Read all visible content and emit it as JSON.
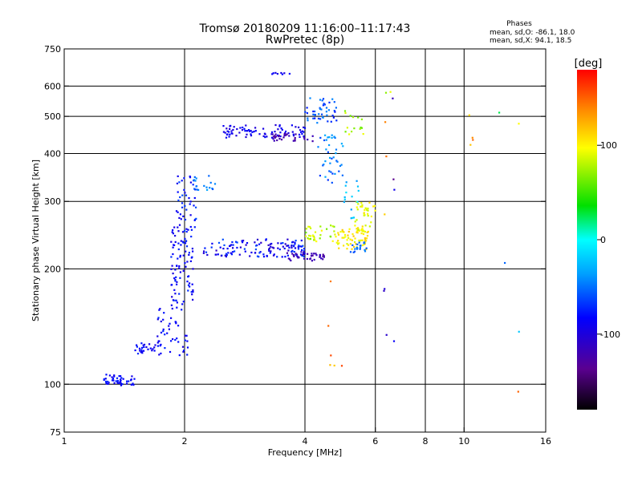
{
  "chart_data": {
    "type": "scatter",
    "title": "Tromsø 20180209 11:16:00–11:17:43",
    "subtitle": "RwPretec (8p)",
    "xlabel": "Frequency [MHz]",
    "ylabel": "Stationary phase Virtual Height [km]",
    "x_scale": "log",
    "y_scale": "log",
    "xlim": [
      1,
      16
    ],
    "ylim": [
      75,
      750
    ],
    "x_ticks": [
      {
        "value": 1,
        "label": "1"
      },
      {
        "value": 2,
        "label": "2"
      },
      {
        "value": 4,
        "label": "4"
      },
      {
        "value": 6,
        "label": "6"
      },
      {
        "value": 8,
        "label": "8"
      },
      {
        "value": 10,
        "label": "10"
      },
      {
        "value": 16,
        "label": "16"
      }
    ],
    "y_ticks": [
      {
        "value": 75,
        "label": "75"
      },
      {
        "value": 100,
        "label": "100"
      },
      {
        "value": 200,
        "label": "200"
      },
      {
        "value": 300,
        "label": "300"
      },
      {
        "value": 400,
        "label": "400"
      },
      {
        "value": 500,
        "label": "500"
      },
      {
        "value": 600,
        "label": "600"
      },
      {
        "value": 750,
        "label": "750"
      }
    ],
    "grid": true,
    "x_gridlines": [
      2,
      4,
      6,
      8,
      10
    ],
    "y_gridlines": [
      100,
      200,
      300,
      400,
      500,
      600
    ],
    "phase_stats": {
      "heading": "Phases",
      "line_o": "mean, sd,O: -86.1, 18.0",
      "line_x": "mean, sd,X:  94.1, 18.5"
    },
    "colorbar": {
      "label": "[deg]",
      "range": [
        -180,
        180
      ],
      "ticks": [
        {
          "value": 100,
          "label": "100"
        },
        {
          "value": 0,
          "label": "0"
        },
        {
          "value": -100,
          "label": "-100"
        }
      ]
    },
    "seed": 20180209,
    "point_clusters": [
      {
        "x": [
          1.25,
          1.5
        ],
        "y": [
          99,
          106
        ],
        "phase": [
          -95,
          -70
        ],
        "n": 45
      },
      {
        "x": [
          1.5,
          1.75
        ],
        "y": [
          120,
          128
        ],
        "phase": [
          -100,
          -70
        ],
        "n": 30
      },
      {
        "x": [
          1.7,
          2.05
        ],
        "y": [
          118,
          160
        ],
        "phase": [
          -100,
          -70
        ],
        "n": 45
      },
      {
        "x": [
          1.85,
          2.1
        ],
        "y": [
          160,
          260
        ],
        "phase": [
          -100,
          -70
        ],
        "n": 90
      },
      {
        "x": [
          1.9,
          2.15
        ],
        "y": [
          250,
          350
        ],
        "phase": [
          -95,
          -60
        ],
        "n": 45
      },
      {
        "x": [
          2.1,
          2.4
        ],
        "y": [
          320,
          350
        ],
        "phase": [
          -60,
          -30
        ],
        "n": 18
      },
      {
        "x": [
          2.2,
          4.0
        ],
        "y": [
          215,
          240
        ],
        "phase": [
          -110,
          -60
        ],
        "n": 130
      },
      {
        "x": [
          3.6,
          4.5
        ],
        "y": [
          210,
          222
        ],
        "phase": [
          -130,
          -110
        ],
        "n": 40
      },
      {
        "x": [
          4.0,
          4.8
        ],
        "y": [
          235,
          260
        ],
        "phase": [
          60,
          100
        ],
        "n": 35
      },
      {
        "x": [
          4.8,
          5.8
        ],
        "y": [
          225,
          255
        ],
        "phase": [
          85,
          120
        ],
        "n": 60
      },
      {
        "x": [
          5.3,
          6.0
        ],
        "y": [
          250,
          300
        ],
        "phase": [
          80,
          110
        ],
        "n": 45
      },
      {
        "x": [
          5.2,
          5.7
        ],
        "y": [
          220,
          235
        ],
        "phase": [
          -60,
          -40
        ],
        "n": 20
      },
      {
        "x": [
          2.5,
          4.0
        ],
        "y": [
          440,
          475
        ],
        "phase": [
          -105,
          -80
        ],
        "n": 80
      },
      {
        "x": [
          3.3,
          4.2
        ],
        "y": [
          430,
          450
        ],
        "phase": [
          -130,
          -110
        ],
        "n": 30
      },
      {
        "x": [
          4.0,
          4.8
        ],
        "y": [
          480,
          560
        ],
        "phase": [
          -80,
          -40
        ],
        "n": 45
      },
      {
        "x": [
          4.3,
          5.0
        ],
        "y": [
          330,
          450
        ],
        "phase": [
          -70,
          -30
        ],
        "n": 40
      },
      {
        "x": [
          5.0,
          5.6
        ],
        "y": [
          440,
          520
        ],
        "phase": [
          50,
          100
        ],
        "n": 15
      },
      {
        "x": [
          5.0,
          5.5
        ],
        "y": [
          270,
          340
        ],
        "phase": [
          -40,
          -10
        ],
        "n": 15
      },
      {
        "x": [
          3.3,
          3.7
        ],
        "y": [
          644,
          650
        ],
        "phase": [
          -100,
          -80
        ],
        "n": 8
      },
      {
        "x": [
          6.3,
          6.7
        ],
        "y": [
          120,
          640
        ],
        "phase": [
          -140,
          160
        ],
        "n": 12
      },
      {
        "x": [
          4.5,
          5.0
        ],
        "y": [
          110,
          200
        ],
        "phase": [
          100,
          170
        ],
        "n": 6
      },
      {
        "x": [
          10.3,
          10.6
        ],
        "y": [
          420,
          510
        ],
        "phase": [
          100,
          150
        ],
        "n": 4
      },
      {
        "x": [
          12.0,
          13.8
        ],
        "y": [
          90,
          520
        ],
        "phase": [
          -120,
          160
        ],
        "n": 5
      }
    ]
  }
}
